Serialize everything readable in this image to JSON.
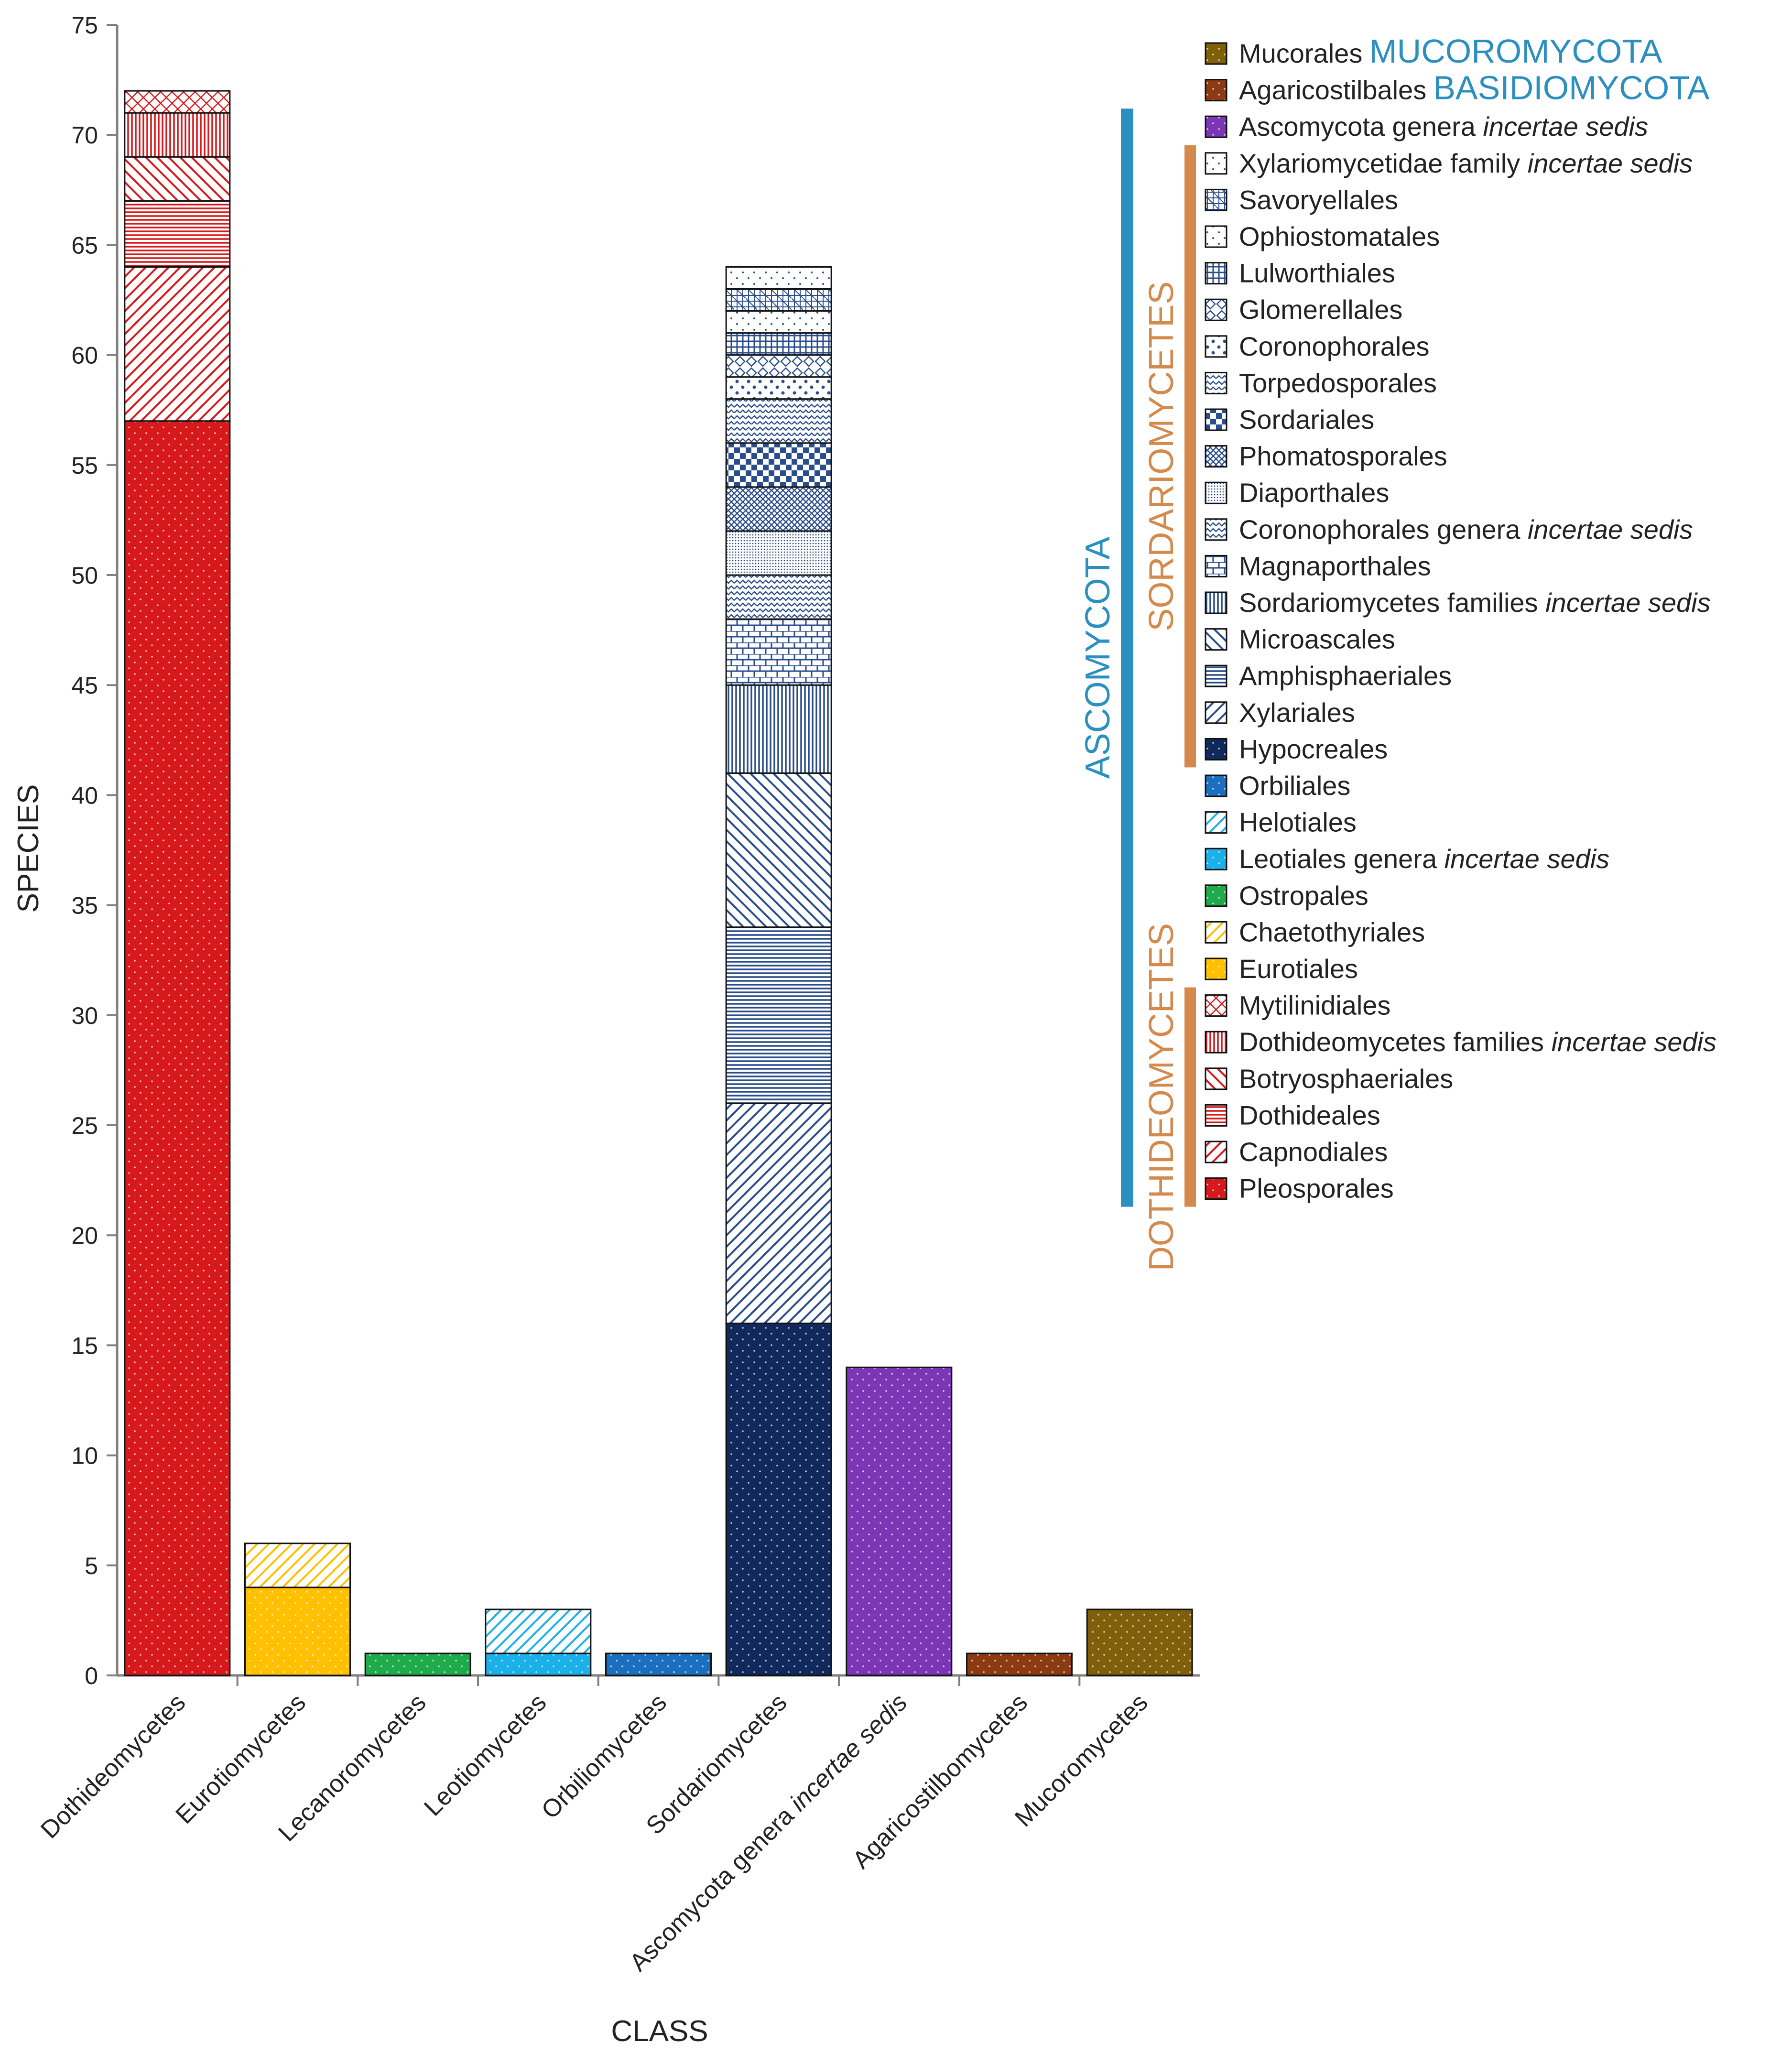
{
  "chart_data": {
    "type": "bar",
    "stacked": true,
    "title": "",
    "xlabel": "CLASS",
    "ylabel": "SPECIES",
    "ylim": [
      0,
      75
    ],
    "ytick_step": 5,
    "grid": false,
    "legend_position": "top-right",
    "categories": [
      "Dothideomycetes",
      "Eurotiomycetes",
      "Lecanoromycetes",
      "Leotiomycetes",
      "Orbiliomycetes",
      "Sordariomycetes",
      "Ascomycota genera incertae sedis",
      "Agaricostilbomycetes",
      "Mucoromycetes"
    ],
    "category_label_parts": [
      [
        {
          "text": "Dothideomycetes",
          "italic": false
        }
      ],
      [
        {
          "text": "Eurotiomycetes",
          "italic": false
        }
      ],
      [
        {
          "text": "Lecanoromycetes",
          "italic": false
        }
      ],
      [
        {
          "text": "Leotiomycetes",
          "italic": false
        }
      ],
      [
        {
          "text": "Orbiliomycetes",
          "italic": false
        }
      ],
      [
        {
          "text": "Sordariomycetes",
          "italic": false
        }
      ],
      [
        {
          "text": "Ascomycota genera ",
          "italic": false
        },
        {
          "text": "incertae sedis",
          "italic": true
        }
      ],
      [
        {
          "text": "Agaricostilbomycetes",
          "italic": false
        }
      ],
      [
        {
          "text": "Mucoromycetes",
          "italic": false
        }
      ]
    ],
    "series": [
      {
        "name": "Pleosporales",
        "color": "#d7191c",
        "pattern": "dots",
        "values": [
          57,
          0,
          0,
          0,
          0,
          0,
          0,
          0,
          0
        ]
      },
      {
        "name": "Capnodiales",
        "color": "#d7191c",
        "pattern": "diag-up",
        "values": [
          7,
          0,
          0,
          0,
          0,
          0,
          0,
          0,
          0
        ]
      },
      {
        "name": "Dothideales",
        "color": "#d7191c",
        "pattern": "horizontal",
        "values": [
          3,
          0,
          0,
          0,
          0,
          0,
          0,
          0,
          0
        ]
      },
      {
        "name": "Botryosphaeriales",
        "color": "#d7191c",
        "pattern": "diag-down",
        "values": [
          2,
          0,
          0,
          0,
          0,
          0,
          0,
          0,
          0
        ]
      },
      {
        "name": "Dothideomycetes families incertae sedis",
        "color": "#d7191c",
        "pattern": "vertical",
        "values": [
          2,
          0,
          0,
          0,
          0,
          0,
          0,
          0,
          0
        ]
      },
      {
        "name": "Mytilinidiales",
        "color": "#d7191c",
        "pattern": "crosshatch",
        "values": [
          1,
          0,
          0,
          0,
          0,
          0,
          0,
          0,
          0
        ]
      },
      {
        "name": "Eurotiales",
        "color": "#ffc000",
        "pattern": "dots",
        "values": [
          0,
          4,
          0,
          0,
          0,
          0,
          0,
          0,
          0
        ]
      },
      {
        "name": "Chaetothyriales",
        "color": "#ffc000",
        "pattern": "diag-up",
        "values": [
          0,
          2,
          0,
          0,
          0,
          0,
          0,
          0,
          0
        ]
      },
      {
        "name": "Ostropales",
        "color": "#1faa4b",
        "pattern": "dots",
        "values": [
          0,
          0,
          1,
          0,
          0,
          0,
          0,
          0,
          0
        ]
      },
      {
        "name": "Leotiales genera incertae sedis",
        "color": "#1ab0ea",
        "pattern": "dots",
        "values": [
          0,
          0,
          0,
          1,
          0,
          0,
          0,
          0,
          0
        ]
      },
      {
        "name": "Helotiales",
        "color": "#1ab0ea",
        "pattern": "diag-up",
        "values": [
          0,
          0,
          0,
          2,
          0,
          0,
          0,
          0,
          0
        ]
      },
      {
        "name": "Orbiliales",
        "color": "#1a6fc0",
        "pattern": "dots",
        "values": [
          0,
          0,
          0,
          0,
          1,
          0,
          0,
          0,
          0
        ]
      },
      {
        "name": "Hypocreales",
        "color": "#10285c",
        "pattern": "dots",
        "values": [
          0,
          0,
          0,
          0,
          0,
          16,
          0,
          0,
          0
        ]
      },
      {
        "name": "Xylariales",
        "color": "#2a4d8c",
        "pattern": "diag-up",
        "values": [
          0,
          0,
          0,
          0,
          0,
          10,
          0,
          0,
          0
        ]
      },
      {
        "name": "Amphisphaeriales",
        "color": "#2a4d8c",
        "pattern": "horizontal",
        "values": [
          0,
          0,
          0,
          0,
          0,
          8,
          0,
          0,
          0
        ]
      },
      {
        "name": "Microascales",
        "color": "#2a4d8c",
        "pattern": "diag-down",
        "values": [
          0,
          0,
          0,
          0,
          0,
          7,
          0,
          0,
          0
        ]
      },
      {
        "name": "Sordariomycetes families incertae sedis",
        "color": "#2a4d8c",
        "pattern": "vertical",
        "values": [
          0,
          0,
          0,
          0,
          0,
          4,
          0,
          0,
          0
        ]
      },
      {
        "name": "Magnaporthales",
        "color": "#2a4d8c",
        "pattern": "bricks",
        "values": [
          0,
          0,
          0,
          0,
          0,
          3,
          0,
          0,
          0
        ]
      },
      {
        "name": "Coronophorales genera incertae sedis",
        "color": "#2a4d8c",
        "pattern": "waves",
        "values": [
          0,
          0,
          0,
          0,
          0,
          2,
          0,
          0,
          0
        ]
      },
      {
        "name": "Diaporthales",
        "color": "#2a4d8c",
        "pattern": "finedots",
        "values": [
          0,
          0,
          0,
          0,
          0,
          2,
          0,
          0,
          0
        ]
      },
      {
        "name": "Phomatosporales",
        "color": "#2a4d8c",
        "pattern": "dense-cross",
        "values": [
          0,
          0,
          0,
          0,
          0,
          2,
          0,
          0,
          0
        ]
      },
      {
        "name": "Sordariales",
        "color": "#2a4d8c",
        "pattern": "checker",
        "values": [
          0,
          0,
          0,
          0,
          0,
          2,
          0,
          0,
          0
        ]
      },
      {
        "name": "Torpedosporales",
        "color": "#2a4d8c",
        "pattern": "zigzag",
        "values": [
          0,
          0,
          0,
          0,
          0,
          2,
          0,
          0,
          0
        ]
      },
      {
        "name": "Coronophorales",
        "color": "#2a4d8c",
        "pattern": "bigdots",
        "values": [
          0,
          0,
          0,
          0,
          0,
          1,
          0,
          0,
          0
        ]
      },
      {
        "name": "Glomerellales",
        "color": "#2a4d8c",
        "pattern": "diamonds",
        "values": [
          0,
          0,
          0,
          0,
          0,
          1,
          0,
          0,
          0
        ]
      },
      {
        "name": "Lulworthiales",
        "color": "#2a4d8c",
        "pattern": "grid",
        "values": [
          0,
          0,
          0,
          0,
          0,
          1,
          0,
          0,
          0
        ]
      },
      {
        "name": "Ophiostomatales",
        "color": "#2a4d8c",
        "pattern": "sparse-dots",
        "values": [
          0,
          0,
          0,
          0,
          0,
          1,
          0,
          0,
          0
        ]
      },
      {
        "name": "Savoryellales",
        "color": "#2a4d8c",
        "pattern": "plaid",
        "values": [
          0,
          0,
          0,
          0,
          0,
          1,
          0,
          0,
          0
        ]
      },
      {
        "name": "Xylariomycetidae family incertae sedis",
        "color": "#2a4d8c",
        "pattern": "sparse-dots",
        "values": [
          0,
          0,
          0,
          0,
          0,
          1,
          0,
          0,
          0
        ]
      },
      {
        "name": "Ascomycota genera incertae sedis",
        "color": "#7b35b5",
        "pattern": "dots",
        "values": [
          0,
          0,
          0,
          0,
          0,
          0,
          14,
          0,
          0
        ]
      },
      {
        "name": "Agaricostilbales",
        "color": "#8b3a12",
        "pattern": "dots",
        "values": [
          0,
          0,
          0,
          0,
          0,
          0,
          0,
          1,
          0
        ]
      },
      {
        "name": "Mucorales",
        "color": "#7f5f0a",
        "pattern": "dots",
        "values": [
          0,
          0,
          0,
          0,
          0,
          0,
          0,
          0,
          3
        ]
      }
    ],
    "legend": [
      {
        "parts": [
          {
            "text": "Mucorales",
            "italic": false
          }
        ],
        "tag": "MUCOROMYCOTA",
        "color": "#7f5f0a",
        "pattern": "dots"
      },
      {
        "parts": [
          {
            "text": "Agaricostilbales",
            "italic": false
          }
        ],
        "tag": "BASIDIOMYCOTA",
        "color": "#8b3a12",
        "pattern": "dots"
      },
      {
        "parts": [
          {
            "text": "Ascomycota genera ",
            "italic": false
          },
          {
            "text": "incertae sedis",
            "italic": true
          }
        ],
        "tag": "",
        "color": "#7b35b5",
        "pattern": "dots"
      },
      {
        "parts": [
          {
            "text": "Xylariomycetidae family ",
            "italic": false
          },
          {
            "text": "incertae sedis",
            "italic": true
          }
        ],
        "tag": "",
        "color": "#2a4d8c",
        "pattern": "sparse-dots"
      },
      {
        "parts": [
          {
            "text": "Savoryellales",
            "italic": false
          }
        ],
        "tag": "",
        "color": "#2a4d8c",
        "pattern": "plaid"
      },
      {
        "parts": [
          {
            "text": "Ophiostomatales",
            "italic": false
          }
        ],
        "tag": "",
        "color": "#2a4d8c",
        "pattern": "sparse-dots"
      },
      {
        "parts": [
          {
            "text": "Lulworthiales",
            "italic": false
          }
        ],
        "tag": "",
        "color": "#2a4d8c",
        "pattern": "grid"
      },
      {
        "parts": [
          {
            "text": "Glomerellales",
            "italic": false
          }
        ],
        "tag": "",
        "color": "#2a4d8c",
        "pattern": "diamonds"
      },
      {
        "parts": [
          {
            "text": "Coronophorales",
            "italic": false
          }
        ],
        "tag": "",
        "color": "#2a4d8c",
        "pattern": "bigdots"
      },
      {
        "parts": [
          {
            "text": "Torpedosporales",
            "italic": false
          }
        ],
        "tag": "",
        "color": "#2a4d8c",
        "pattern": "zigzag"
      },
      {
        "parts": [
          {
            "text": "Sordariales",
            "italic": false
          }
        ],
        "tag": "",
        "color": "#2a4d8c",
        "pattern": "checker"
      },
      {
        "parts": [
          {
            "text": "Phomatosporales",
            "italic": false
          }
        ],
        "tag": "",
        "color": "#2a4d8c",
        "pattern": "dense-cross"
      },
      {
        "parts": [
          {
            "text": "Diaporthales",
            "italic": false
          }
        ],
        "tag": "",
        "color": "#2a4d8c",
        "pattern": "finedots"
      },
      {
        "parts": [
          {
            "text": "Coronophorales genera ",
            "italic": false
          },
          {
            "text": "incertae sedis",
            "italic": true
          }
        ],
        "tag": "",
        "color": "#2a4d8c",
        "pattern": "waves"
      },
      {
        "parts": [
          {
            "text": "Magnaporthales",
            "italic": false
          }
        ],
        "tag": "",
        "color": "#2a4d8c",
        "pattern": "bricks"
      },
      {
        "parts": [
          {
            "text": "Sordariomycetes families ",
            "italic": false
          },
          {
            "text": "incertae sedis",
            "italic": true
          }
        ],
        "tag": "",
        "color": "#2a4d8c",
        "pattern": "vertical"
      },
      {
        "parts": [
          {
            "text": "Microascales",
            "italic": false
          }
        ],
        "tag": "",
        "color": "#2a4d8c",
        "pattern": "diag-down"
      },
      {
        "parts": [
          {
            "text": "Amphisphaeriales",
            "italic": false
          }
        ],
        "tag": "",
        "color": "#2a4d8c",
        "pattern": "horizontal"
      },
      {
        "parts": [
          {
            "text": "Xylariales",
            "italic": false
          }
        ],
        "tag": "",
        "color": "#2a4d8c",
        "pattern": "diag-up"
      },
      {
        "parts": [
          {
            "text": "Hypocreales",
            "italic": false
          }
        ],
        "tag": "",
        "color": "#10285c",
        "pattern": "dots"
      },
      {
        "parts": [
          {
            "text": "Orbiliales",
            "italic": false
          }
        ],
        "tag": "",
        "color": "#1a6fc0",
        "pattern": "dots"
      },
      {
        "parts": [
          {
            "text": "Helotiales",
            "italic": false
          }
        ],
        "tag": "",
        "color": "#1ab0ea",
        "pattern": "diag-up"
      },
      {
        "parts": [
          {
            "text": "Leotiales genera ",
            "italic": false
          },
          {
            "text": "incertae sedis",
            "italic": true
          }
        ],
        "tag": "",
        "color": "#1ab0ea",
        "pattern": "dots"
      },
      {
        "parts": [
          {
            "text": "Ostropales",
            "italic": false
          }
        ],
        "tag": "",
        "color": "#1faa4b",
        "pattern": "dots"
      },
      {
        "parts": [
          {
            "text": "Chaetothyriales",
            "italic": false
          }
        ],
        "tag": "",
        "color": "#ffc000",
        "pattern": "diag-up"
      },
      {
        "parts": [
          {
            "text": "Eurotiales",
            "italic": false
          }
        ],
        "tag": "",
        "color": "#ffc000",
        "pattern": "dots"
      },
      {
        "parts": [
          {
            "text": "Mytilinidiales",
            "italic": false
          }
        ],
        "tag": "",
        "color": "#d7191c",
        "pattern": "crosshatch"
      },
      {
        "parts": [
          {
            "text": "Dothideomycetes families ",
            "italic": false
          },
          {
            "text": "incertae sedis",
            "italic": true
          }
        ],
        "tag": "",
        "color": "#d7191c",
        "pattern": "vertical"
      },
      {
        "parts": [
          {
            "text": "Botryosphaeriales",
            "italic": false
          }
        ],
        "tag": "",
        "color": "#d7191c",
        "pattern": "diag-down"
      },
      {
        "parts": [
          {
            "text": "Dothideales",
            "italic": false
          }
        ],
        "tag": "",
        "color": "#d7191c",
        "pattern": "horizontal"
      },
      {
        "parts": [
          {
            "text": "Capnodiales",
            "italic": false
          }
        ],
        "tag": "",
        "color": "#d7191c",
        "pattern": "diag-up"
      },
      {
        "parts": [
          {
            "text": "Pleosporales",
            "italic": false
          }
        ],
        "tag": "",
        "color": "#d7191c",
        "pattern": "dots"
      }
    ],
    "group_brackets": [
      {
        "label": "ASCOMYCOTA",
        "color": "#2b8fc0",
        "first_item": "Ascomycota genera incertae sedis",
        "last_item": "Pleosporales"
      },
      {
        "label": "SORDARIOMYCETES",
        "color": "#d48a4c",
        "first_item": "Xylariomycetidae family incertae sedis",
        "last_item": "Hypocreales"
      },
      {
        "label": "DOTHIDEOMYCETES",
        "color": "#d48a4c",
        "first_item": "Mytilinidiales",
        "last_item": "Pleosporales"
      }
    ],
    "colors": {
      "axis": "#808080",
      "text": "#222222",
      "phylum_tag": "#2b8fc0",
      "outline": "#111111"
    }
  }
}
